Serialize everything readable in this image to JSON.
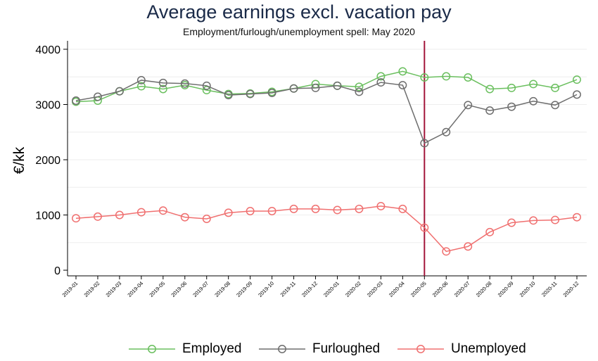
{
  "chart_data": {
    "type": "line",
    "title": "Average earnings excl. vacation pay",
    "subtitle": "Employment/furlough/unemployment spell: May 2020",
    "ylabel": "€/kk",
    "xlabel": "",
    "ylim": [
      0,
      4000
    ],
    "yticks": [
      0,
      1000,
      2000,
      3000,
      4000
    ],
    "grid": true,
    "legend_position": "bottom",
    "categories": [
      "2019-01",
      "2019-02",
      "2019-03",
      "2019-04",
      "2019-05",
      "2019-06",
      "2019-07",
      "2019-08",
      "2019-09",
      "2019-10",
      "2019-11",
      "2019-12",
      "2020-01",
      "2020-02",
      "2020-03",
      "2020-04",
      "2020-05",
      "2020-06",
      "2020-07",
      "2020-08",
      "2020-09",
      "2020-10",
      "2020-11",
      "2020-12"
    ],
    "reference_line": {
      "category": "2020-05",
      "color": "#a3153a"
    },
    "series": [
      {
        "name": "Employed",
        "color": "#6abf5e",
        "values": [
          3050,
          3070,
          3240,
          3330,
          3280,
          3350,
          3260,
          3190,
          3200,
          3230,
          3290,
          3370,
          3340,
          3320,
          3510,
          3600,
          3490,
          3510,
          3490,
          3280,
          3300,
          3370,
          3300,
          3450
        ]
      },
      {
        "name": "Furloughed",
        "color": "#6e6e6e",
        "values": [
          3070,
          3140,
          3240,
          3440,
          3390,
          3380,
          3340,
          3170,
          3190,
          3210,
          3290,
          3300,
          3340,
          3230,
          3400,
          3350,
          2300,
          2500,
          2990,
          2890,
          2960,
          3060,
          2990,
          3180
        ]
      },
      {
        "name": "Unemployed",
        "color": "#f07070",
        "values": [
          940,
          970,
          1000,
          1050,
          1080,
          960,
          930,
          1040,
          1070,
          1070,
          1110,
          1110,
          1090,
          1110,
          1160,
          1110,
          770,
          340,
          430,
          690,
          860,
          900,
          910,
          960
        ]
      }
    ]
  }
}
